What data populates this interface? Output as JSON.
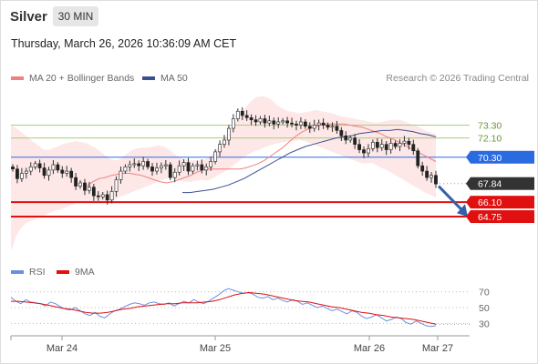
{
  "header": {
    "symbol": "Silver",
    "timeframe": "30 MIN"
  },
  "datetime": "Thursday, March 26, 2026 10:36:09 AM CET",
  "legend": {
    "ma20_label": "MA 20 + Bollinger Bands",
    "ma50_label": "MA 50",
    "credit": "Research © 2026 Trading Central",
    "rsi_label": "RSI",
    "ma9_label": "9MA"
  },
  "colors": {
    "bollinger_fill": "#fde4e4",
    "ma20": "#f08080",
    "ma50": "#3a4f8f",
    "resistance": "#a6cf7a",
    "pivot": "#2b6be0",
    "support": "#e01010",
    "current": "#333333",
    "arrow": "#3560a8",
    "rsi": "#6a8fe0",
    "ma9": "#e01010"
  },
  "chart_data": [
    {
      "type": "candlestick",
      "title": "Silver",
      "y_range": [
        60.5,
        77
      ],
      "levels": [
        {
          "value": 73.3,
          "label": "73.30",
          "kind": "resistance"
        },
        {
          "value": 72.1,
          "label": "72.10",
          "kind": "resistance"
        },
        {
          "value": 70.3,
          "label": "70.30",
          "kind": "pivot"
        },
        {
          "value": 67.84,
          "label": "67.84",
          "kind": "current"
        },
        {
          "value": 66.1,
          "label": "66.10",
          "kind": "support"
        },
        {
          "value": 64.75,
          "label": "64.75",
          "kind": "support"
        }
      ],
      "x_ticks": [
        "Mar 24",
        "Mar 25",
        "Mar 26",
        "Mar 27"
      ],
      "series": [
        {
          "name": "MA 20 + Bollinger Bands"
        },
        {
          "name": "MA 50"
        }
      ],
      "closes": [
        69.2,
        68.3,
        68.8,
        69.0,
        69.4,
        69.7,
        69.3,
        68.6,
        69.1,
        69.6,
        69.1,
        68.8,
        69.0,
        68.4,
        67.6,
        67.9,
        67.2,
        67.5,
        66.7,
        66.6,
        66.8,
        66.3,
        67.1,
        68.2,
        69.0,
        69.4,
        69.6,
        69.7,
        69.5,
        69.9,
        69.4,
        69.0,
        69.3,
        69.5,
        69.6,
        68.4,
        68.9,
        69.5,
        69.8,
        69.0,
        69.5,
        69.6,
        69.1,
        69.4,
        69.9,
        70.8,
        71.5,
        71.9,
        73.0,
        73.9,
        74.6,
        74.2,
        74.0,
        73.8,
        73.6,
        73.9,
        73.5,
        73.7,
        73.4,
        73.6,
        73.7,
        73.5,
        73.4,
        73.3,
        73.6,
        73.2,
        73.0,
        73.3,
        73.5,
        73.3,
        73.1,
        73.2,
        72.8,
        72.3,
        71.9,
        72.1,
        71.5,
        71.0,
        70.7,
        71.1,
        71.7,
        71.2,
        71.5,
        71.0,
        71.6,
        71.3,
        71.6,
        71.8,
        71.5,
        70.9,
        69.5,
        69.0,
        68.4,
        68.6,
        67.8
      ],
      "bb_upper": [
        73.3,
        73.0,
        72.6,
        72.2,
        71.8,
        71.4,
        71.0,
        71.0,
        71.2,
        71.4,
        71.6,
        71.7,
        71.8,
        71.7,
        71.6,
        71.3,
        71.0,
        70.6,
        70.2,
        70.0,
        70.1,
        70.5,
        70.9,
        71.1,
        71.2,
        71.2,
        71.3,
        71.4,
        71.3,
        71.0,
        70.6,
        70.3,
        70.1,
        70.0,
        70.0,
        70.0,
        70.2,
        70.6,
        71.2,
        71.9,
        72.6,
        73.4,
        74.1,
        74.9,
        75.5,
        75.9,
        76.0,
        75.9,
        75.6,
        75.1,
        74.8,
        74.6,
        74.5,
        74.4,
        74.5,
        74.6,
        74.7,
        74.6,
        74.5,
        74.4,
        74.2,
        74.1,
        74.0,
        73.9,
        73.8,
        73.7,
        73.6,
        73.5,
        73.6,
        73.7,
        73.8,
        73.8,
        73.7,
        73.5,
        73.3,
        73.1,
        72.8,
        72.6,
        72.5
      ],
      "bb_lower": [
        61.5,
        63.0,
        63.8,
        64.2,
        64.4,
        64.6,
        64.8,
        65.1,
        65.3,
        65.4,
        65.6,
        65.8,
        66.0,
        66.2,
        66.1,
        66.0,
        66.0,
        66.0,
        66.1,
        66.3,
        66.6,
        66.8,
        67.0,
        67.2,
        67.4,
        67.6,
        67.8,
        68.0,
        68.2,
        68.4,
        68.3,
        68.1,
        68.0,
        68.0,
        68.1,
        68.2,
        68.1,
        68.3,
        68.6,
        68.9,
        69.2,
        69.6,
        70.0,
        70.4,
        70.7,
        70.9,
        71.1,
        71.3,
        71.5,
        71.6,
        71.7,
        71.8,
        71.8,
        71.9,
        71.8,
        71.6,
        71.4,
        71.2,
        71.0,
        70.8,
        70.6,
        70.4,
        70.2,
        70.0,
        69.8,
        69.7,
        69.8,
        69.6,
        69.3,
        69.1,
        68.8,
        68.5,
        68.2,
        67.9,
        67.6,
        67.3,
        67.0,
        66.8,
        66.5
      ],
      "ma20": [
        67.6,
        68.0,
        68.3,
        68.4,
        68.6,
        68.7,
        68.8,
        68.8,
        68.7,
        68.6,
        68.4,
        68.2,
        68.0,
        67.9,
        68.0,
        68.2,
        68.4,
        68.6,
        68.9,
        69.1,
        69.2,
        69.2,
        69.2,
        69.2,
        69.2,
        69.2,
        69.3,
        69.5,
        69.7,
        70.0,
        70.4,
        70.8,
        71.2,
        71.7,
        72.2,
        72.6,
        72.9,
        73.1,
        73.3,
        73.4,
        73.4,
        73.4,
        73.4,
        73.3,
        73.2,
        73.1,
        72.9,
        72.7,
        72.5,
        72.2,
        72.0,
        71.7,
        71.4,
        71.1,
        70.8,
        70.5,
        70.2,
        69.9
      ],
      "ma50": [
        67.0,
        67.0,
        67.1,
        67.2,
        67.3,
        67.5,
        67.7,
        68.0,
        68.3,
        68.7,
        69.1,
        69.5,
        69.9,
        70.3,
        70.7,
        71.0,
        71.3,
        71.5,
        71.7,
        71.9,
        72.1,
        72.2,
        72.3,
        72.5,
        72.6,
        72.7,
        72.8,
        72.8,
        72.9,
        72.8,
        72.7,
        72.5,
        72.4,
        72.2
      ]
    },
    {
      "type": "line",
      "title": "RSI",
      "y_ticks": [
        70,
        50,
        30
      ],
      "y_range": [
        20,
        80
      ],
      "series": [
        {
          "name": "RSI",
          "values": [
            63,
            58,
            55,
            60,
            57,
            56,
            55,
            52,
            57,
            55,
            51,
            48,
            47,
            50,
            46,
            42,
            40,
            44,
            39,
            37,
            42,
            46,
            48,
            51,
            54,
            56,
            55,
            53,
            56,
            57,
            55,
            54,
            56,
            52,
            55,
            58,
            56,
            60,
            57,
            55,
            58,
            62,
            66,
            71,
            74,
            72,
            70,
            68,
            69,
            67,
            63,
            62,
            64,
            60,
            62,
            59,
            57,
            60,
            58,
            54,
            56,
            53,
            50,
            52,
            49,
            46,
            48,
            45,
            42,
            46,
            44,
            39,
            36,
            38,
            41,
            37,
            33,
            35,
            38,
            36,
            31,
            29,
            33,
            30,
            27,
            26,
            27
          ]
        },
        {
          "name": "9MA",
          "values": [
            58,
            58,
            57,
            56,
            55,
            53,
            51,
            49,
            48,
            46,
            44,
            43,
            43,
            44,
            46,
            48,
            49,
            51,
            52,
            53,
            54,
            55,
            55,
            56,
            56,
            56,
            57,
            58,
            60,
            63,
            66,
            68,
            69,
            68,
            67,
            65,
            63,
            61,
            59,
            58,
            57,
            55,
            53,
            51,
            50,
            48,
            46,
            44,
            43,
            41,
            40,
            38,
            37,
            36,
            35,
            33,
            31,
            29
          ]
        }
      ]
    }
  ]
}
